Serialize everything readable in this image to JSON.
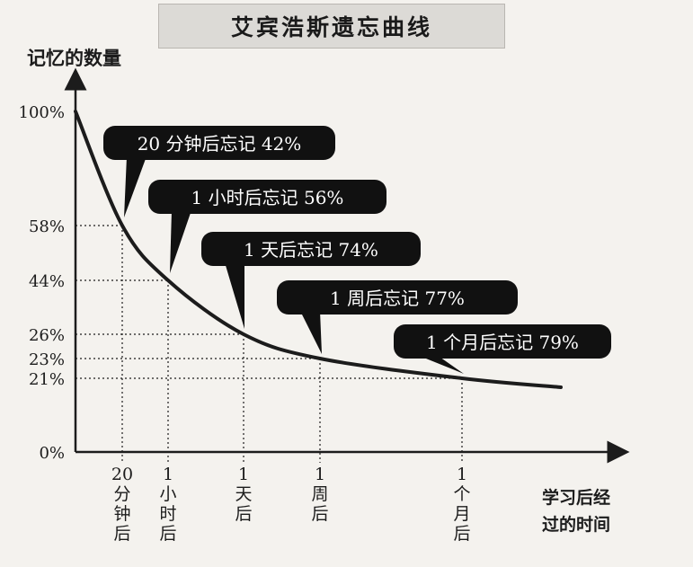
{
  "title": "艾宾浩斯遗忘曲线",
  "chart_data": {
    "type": "line",
    "ylabel": "记忆的数量",
    "xlabel_lines": [
      "学习后经",
      "过的时间"
    ],
    "y_ticks": [
      "100%",
      "58%",
      "44%",
      "26%",
      "23%",
      "21%",
      "0%"
    ],
    "y_tick_values": [
      100,
      58,
      44,
      26,
      23,
      21,
      0
    ],
    "ylim": [
      0,
      100
    ],
    "x_ticks": [
      {
        "id": "20min",
        "lines": [
          "20",
          "分",
          "钟",
          "后"
        ]
      },
      {
        "id": "1hour",
        "lines": [
          "1",
          "小",
          "时",
          "后"
        ]
      },
      {
        "id": "1day",
        "lines": [
          "1",
          "天",
          "后"
        ]
      },
      {
        "id": "1week",
        "lines": [
          "1",
          "周",
          "后"
        ]
      },
      {
        "id": "1month",
        "lines": [
          "1",
          "个",
          "月",
          "后"
        ]
      }
    ],
    "points": [
      {
        "x": "0",
        "y": 100
      },
      {
        "x": "20min",
        "y": 58
      },
      {
        "x": "1hour",
        "y": 44
      },
      {
        "x": "1day",
        "y": 26
      },
      {
        "x": "1week",
        "y": 23
      },
      {
        "x": "1month",
        "y": 21
      }
    ],
    "annotations": [
      {
        "text": "20 分钟后忘记 42%",
        "target": "20min"
      },
      {
        "text": "1 小时后忘记 56%",
        "target": "1hour"
      },
      {
        "text": "1 天后忘记 74%",
        "target": "1day"
      },
      {
        "text": "1 周后忘记 77%",
        "target": "1week"
      },
      {
        "text": "1 个月后忘记 79%",
        "target": "1month"
      }
    ],
    "grid": "dotted guide lines at data points"
  },
  "colors": {
    "line": "#1c1c1c",
    "callout_fill": "#111111",
    "callout_text": "#ffffff",
    "background": "#f4f2ee",
    "title_bg": "#dcdad6"
  }
}
